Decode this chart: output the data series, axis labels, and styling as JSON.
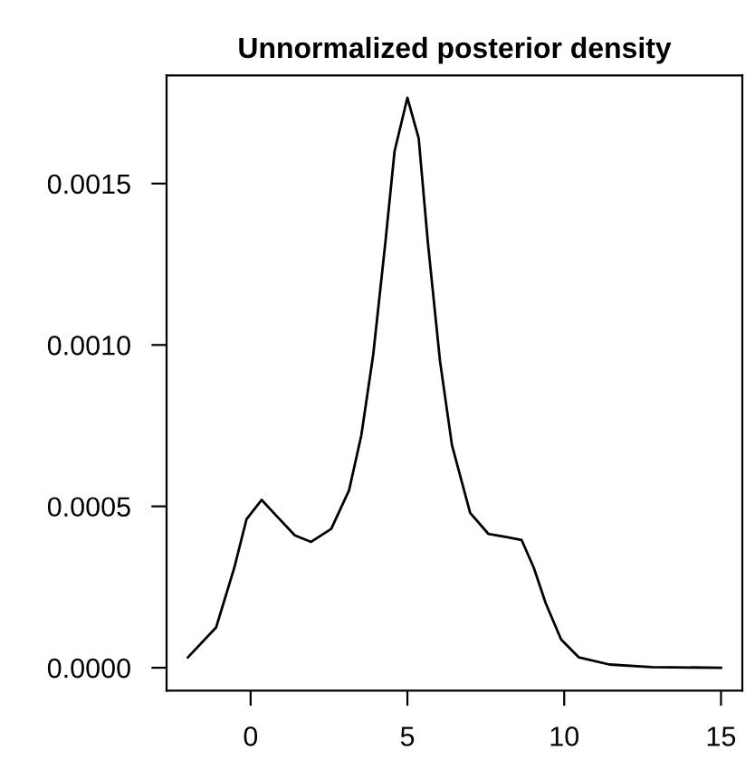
{
  "chart_data": {
    "type": "line",
    "title": "Unnormalized posterior density",
    "x": [
      -2,
      -1.1,
      -0.52,
      -0.13,
      0.35,
      0.83,
      1.41,
      1.93,
      2.57,
      3.14,
      3.53,
      3.91,
      4.3,
      4.59,
      5.0,
      5.36,
      5.65,
      6.04,
      6.42,
      7.0,
      7.58,
      8.16,
      8.64,
      9.03,
      9.41,
      9.9,
      10.47,
      11.44,
      12.79,
      15
    ],
    "series": [
      {
        "color": "#000000",
        "values": [
          3.2e-05,
          0.000125,
          0.00031,
          0.00046,
          0.00052,
          0.00047,
          0.00041,
          0.00039,
          0.00043,
          0.00055,
          0.00072,
          0.00097,
          0.00132,
          0.0016,
          0.001766,
          0.00164,
          0.00132,
          0.00095,
          0.00069,
          0.00048,
          0.000415,
          0.000405,
          0.000396,
          0.00031,
          0.0002,
          8.8e-05,
          3.2e-05,
          1e-05,
          2e-06,
          0
        ]
      }
    ],
    "xlim": [
      -2.68,
      15.68
    ],
    "xticks": [
      0,
      5,
      10,
      15
    ],
    "ylim": [
      -7.1e-05,
      0.001835
    ],
    "yticks": [
      {
        "value": 0,
        "label": "0.0000"
      },
      {
        "value": 0.0005,
        "label": "0.0005"
      },
      {
        "value": 0.001,
        "label": "0.0010"
      },
      {
        "value": 0.0015,
        "label": "0.0015"
      }
    ],
    "grid": false,
    "legend": false,
    "marker": "none",
    "line_style": "solid"
  }
}
